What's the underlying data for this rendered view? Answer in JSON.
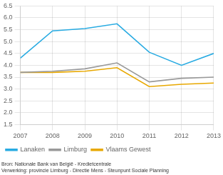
{
  "chart_data": {
    "type": "line",
    "x": [
      2007,
      2008,
      2009,
      2010,
      2011,
      2012,
      2013
    ],
    "series": [
      {
        "name": "Lanaken",
        "color": "#29ABE2",
        "values": [
          4.3,
          5.45,
          5.55,
          5.75,
          4.55,
          4.0,
          4.5
        ]
      },
      {
        "name": "Limburg",
        "color": "#999999",
        "values": [
          3.7,
          3.75,
          3.85,
          4.1,
          3.3,
          3.45,
          3.5
        ]
      },
      {
        "name": "Vlaams Gewest",
        "color": "#E8A800",
        "values": [
          3.7,
          3.7,
          3.75,
          3.9,
          3.1,
          3.2,
          3.25
        ]
      }
    ],
    "xlim": [
      2007,
      2013
    ],
    "xticks": [
      2007,
      2008,
      2009,
      2010,
      2011,
      2012,
      2013
    ],
    "ylim": [
      1.5,
      6.5
    ],
    "yticks": [
      1.5,
      {
        "value": 2,
        "label": "2.0"
      },
      2.5,
      {
        "value": 3,
        "label": "3.0"
      },
      3.5,
      {
        "value": 4,
        "label": "4.0"
      },
      4.5,
      {
        "value": 5,
        "label": "5.0"
      },
      5.5,
      {
        "value": 6,
        "label": "6.0"
      },
      6.5
    ],
    "grid": true,
    "legend": "bottom",
    "annotations": [
      "Bron: Nationale Bank van België - Kredietcentrale",
      "Verwerking: provincie Limburg - Directie Mens - Steunpunt Sociale Planning"
    ]
  }
}
